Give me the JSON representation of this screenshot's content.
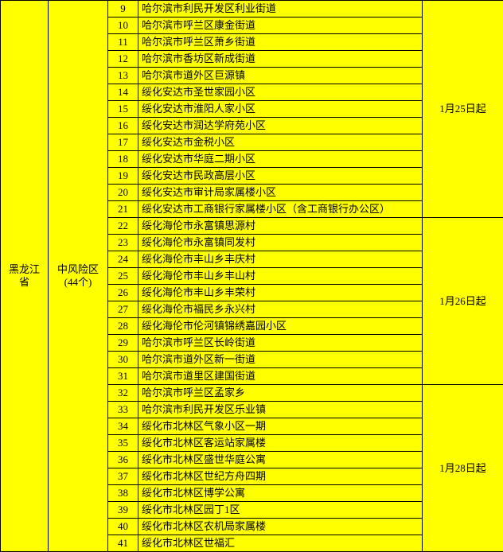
{
  "province": "黑龙江省",
  "risk_level": "中风险区\n(44个)",
  "groups": [
    {
      "date": "1月25日起",
      "rows": [
        {
          "n": 9,
          "name": "哈尔滨市利民开发区利业街道"
        },
        {
          "n": 10,
          "name": "哈尔滨市呼兰区康金街道"
        },
        {
          "n": 11,
          "name": "哈尔滨市呼兰区萧乡街道"
        },
        {
          "n": 12,
          "name": "哈尔滨市香坊区新成街道"
        },
        {
          "n": 13,
          "name": "哈尔滨市道外区巨源镇"
        },
        {
          "n": 14,
          "name": "绥化安达市圣世家园小区"
        },
        {
          "n": 15,
          "name": "绥化安达市淮阳人家小区"
        },
        {
          "n": 16,
          "name": "绥化安达市润达学府苑小区"
        },
        {
          "n": 17,
          "name": "绥化安达市金税小区"
        },
        {
          "n": 18,
          "name": "绥化安达市华庭二期小区"
        },
        {
          "n": 19,
          "name": "绥化安达市民政高层小区"
        },
        {
          "n": 20,
          "name": "绥化安达市审计局家属楼小区"
        },
        {
          "n": 21,
          "name": "绥化安达市工商银行家属楼小区（含工商银行办公区）"
        }
      ]
    },
    {
      "date": "1月26日起",
      "rows": [
        {
          "n": 22,
          "name": "绥化海伦市永富镇思源村"
        },
        {
          "n": 23,
          "name": "绥化海伦市永富镇同发村"
        },
        {
          "n": 24,
          "name": "绥化海伦市丰山乡丰庆村"
        },
        {
          "n": 25,
          "name": "绥化海伦市丰山乡丰山村"
        },
        {
          "n": 26,
          "name": "绥化海伦市丰山乡丰荣村"
        },
        {
          "n": 27,
          "name": "绥化海伦市福民乡永兴村"
        },
        {
          "n": 28,
          "name": "绥化海伦市伦河镇锦绣嘉园小区"
        },
        {
          "n": 29,
          "name": "哈尔滨市呼兰区长岭街道"
        },
        {
          "n": 30,
          "name": "哈尔滨市道外区新一街道"
        },
        {
          "n": 31,
          "name": "哈尔滨市道里区建国街道"
        }
      ]
    },
    {
      "date": "1月28日起",
      "rows": [
        {
          "n": 32,
          "name": "哈尔滨市呼兰区孟家乡"
        },
        {
          "n": 33,
          "name": "哈尔滨市利民开发区乐业镇"
        },
        {
          "n": 34,
          "name": "绥化市北林区气象小区一期"
        },
        {
          "n": 35,
          "name": "绥化市北林区客运站家属楼"
        },
        {
          "n": 36,
          "name": "绥化市北林区盛世华庭公寓"
        },
        {
          "n": 37,
          "name": "绥化市北林区世纪方舟四期"
        },
        {
          "n": 38,
          "name": "绥化市北林区博学公寓"
        },
        {
          "n": 39,
          "name": "绥化市北林区园丁1区"
        },
        {
          "n": 40,
          "name": "绥化市北林区农机局家属楼"
        },
        {
          "n": 41,
          "name": "绥化市北林区世福汇"
        }
      ]
    }
  ],
  "columns": {
    "province_w": 60,
    "risk_w": 75,
    "num_w": 38,
    "name_w": 357,
    "date_w": 102
  },
  "total_rows": 33
}
